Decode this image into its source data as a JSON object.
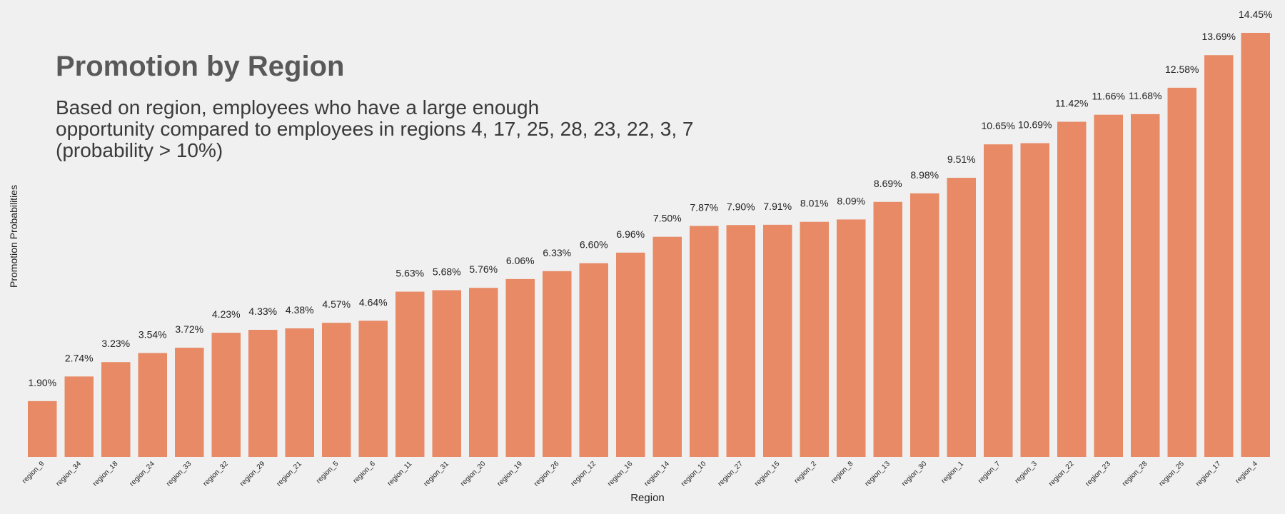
{
  "chart_data": {
    "type": "bar",
    "title": "Promotion by Region",
    "subtitle_lines": [
      "Based on region, employees who have a large enough",
      "opportunity compared to employees in regions 4, 17, 25, 28, 23, 22, 3, 7",
      "(probability > 10%)"
    ],
    "xlabel": "Region",
    "ylabel": "Promotion Probabilities",
    "categories": [
      "region_9",
      "region_34",
      "region_18",
      "region_24",
      "region_33",
      "region_32",
      "region_29",
      "region_21",
      "region_5",
      "region_6",
      "region_11",
      "region_31",
      "region_20",
      "region_19",
      "region_26",
      "region_12",
      "region_16",
      "region_14",
      "region_10",
      "region_27",
      "region_15",
      "region_2",
      "region_8",
      "region_13",
      "region_30",
      "region_1",
      "region_7",
      "region_3",
      "region_22",
      "region_23",
      "region_28",
      "region_25",
      "region_17",
      "region_4"
    ],
    "values": [
      1.9,
      2.74,
      3.23,
      3.54,
      3.72,
      4.23,
      4.33,
      4.38,
      4.57,
      4.64,
      5.63,
      5.68,
      5.76,
      6.06,
      6.33,
      6.6,
      6.96,
      7.5,
      7.87,
      7.9,
      7.91,
      8.01,
      8.09,
      8.69,
      8.98,
      9.51,
      10.65,
      10.69,
      11.42,
      11.66,
      11.68,
      12.58,
      13.69,
      14.45
    ],
    "value_labels": [
      "1.90%",
      "2.74%",
      "3.23%",
      "3.54%",
      "3.72%",
      "4.23%",
      "4.33%",
      "4.38%",
      "4.57%",
      "4.64%",
      "5.63%",
      "5.68%",
      "5.76%",
      "6.06%",
      "6.33%",
      "6.60%",
      "6.96%",
      "7.50%",
      "7.87%",
      "7.90%",
      "7.91%",
      "8.01%",
      "8.09%",
      "8.69%",
      "8.98%",
      "9.51%",
      "10.65%",
      "10.69%",
      "11.42%",
      "11.66%",
      "11.68%",
      "12.58%",
      "13.69%",
      "14.45%"
    ],
    "ylim": [
      0,
      15
    ],
    "grid": false,
    "legend": "none",
    "bar_color": "#e88a65",
    "background": "#f0f0f0"
  }
}
